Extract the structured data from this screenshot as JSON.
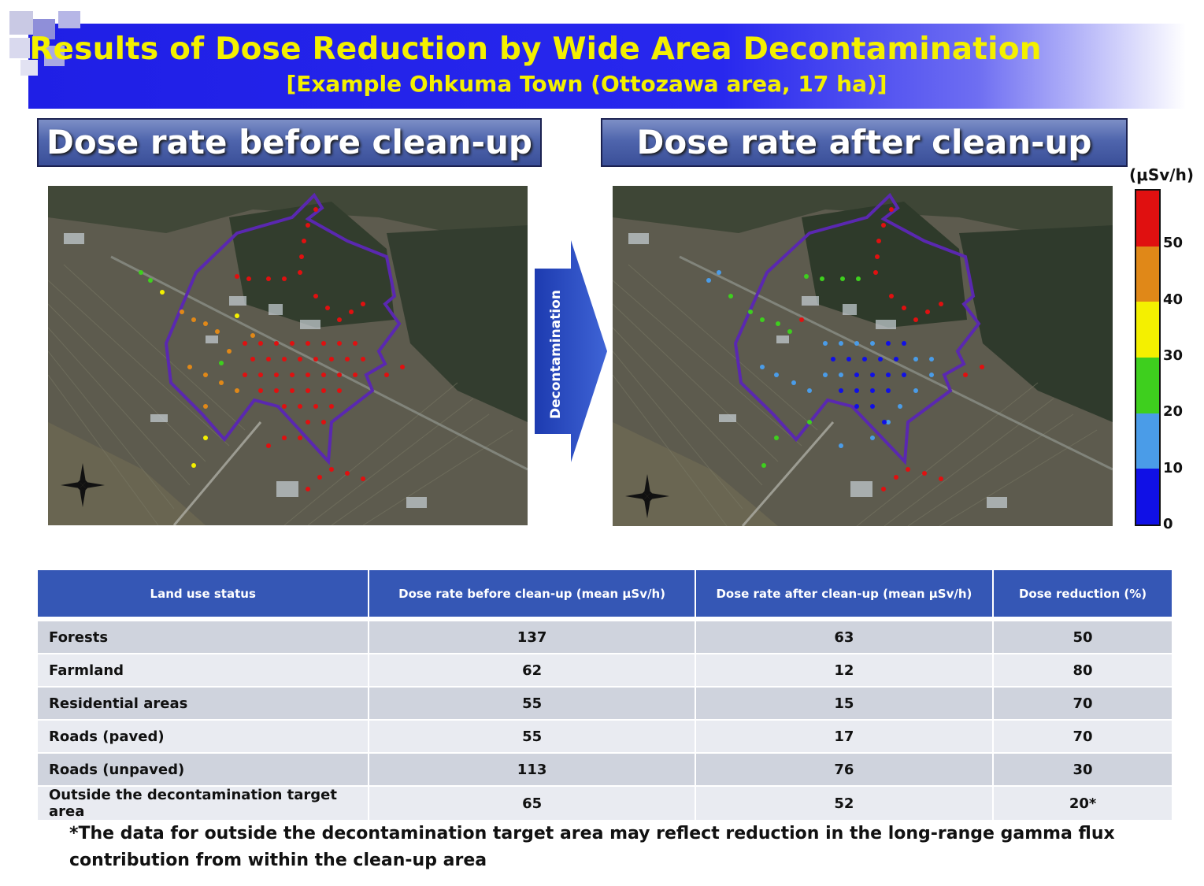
{
  "banner": {
    "title": "Results of Dose Reduction by Wide Area Decontamination",
    "subtitle": "[Example Ohkuma Town (Ottozawa area, 17 ha)]",
    "title_color": "#f4f000",
    "background_color": "#2424ea"
  },
  "panels": {
    "before_title": "Dose rate before clean-up",
    "after_title": "Dose rate after clean-up"
  },
  "arrow": {
    "label": "Decontamination"
  },
  "legend": {
    "unit": "(μSv/h)",
    "ticks": [
      "50",
      "40",
      "30",
      "20",
      "10",
      "0"
    ],
    "colors": [
      "#e01010",
      "#e08818",
      "#f4f000",
      "#3ecf1e",
      "#4a9ce8",
      "#1010e6"
    ]
  },
  "table": {
    "headers": [
      "Land use status",
      "Dose rate before clean-up (mean μSv/h)",
      "Dose rate after clean-up (mean μSv/h)",
      "Dose reduction (%)"
    ],
    "rows": [
      {
        "land": "Forests",
        "before": "137",
        "after": "63",
        "reduction": "50"
      },
      {
        "land": "Farmland",
        "before": "62",
        "after": "12",
        "reduction": "80"
      },
      {
        "land": "Residential areas",
        "before": "55",
        "after": "15",
        "reduction": "70"
      },
      {
        "land": "Roads (paved)",
        "before": "55",
        "after": "17",
        "reduction": "70"
      },
      {
        "land": "Roads (unpaved)",
        "before": "113",
        "after": "76",
        "reduction": "30"
      },
      {
        "land": "Outside the decontamination target area",
        "before": "65",
        "after": "52",
        "reduction": "20*"
      }
    ]
  },
  "footnote": "*The data for outside the decontamination target area may reflect reduction in the long-range gamma flux contribution from within the clean-up area"
}
